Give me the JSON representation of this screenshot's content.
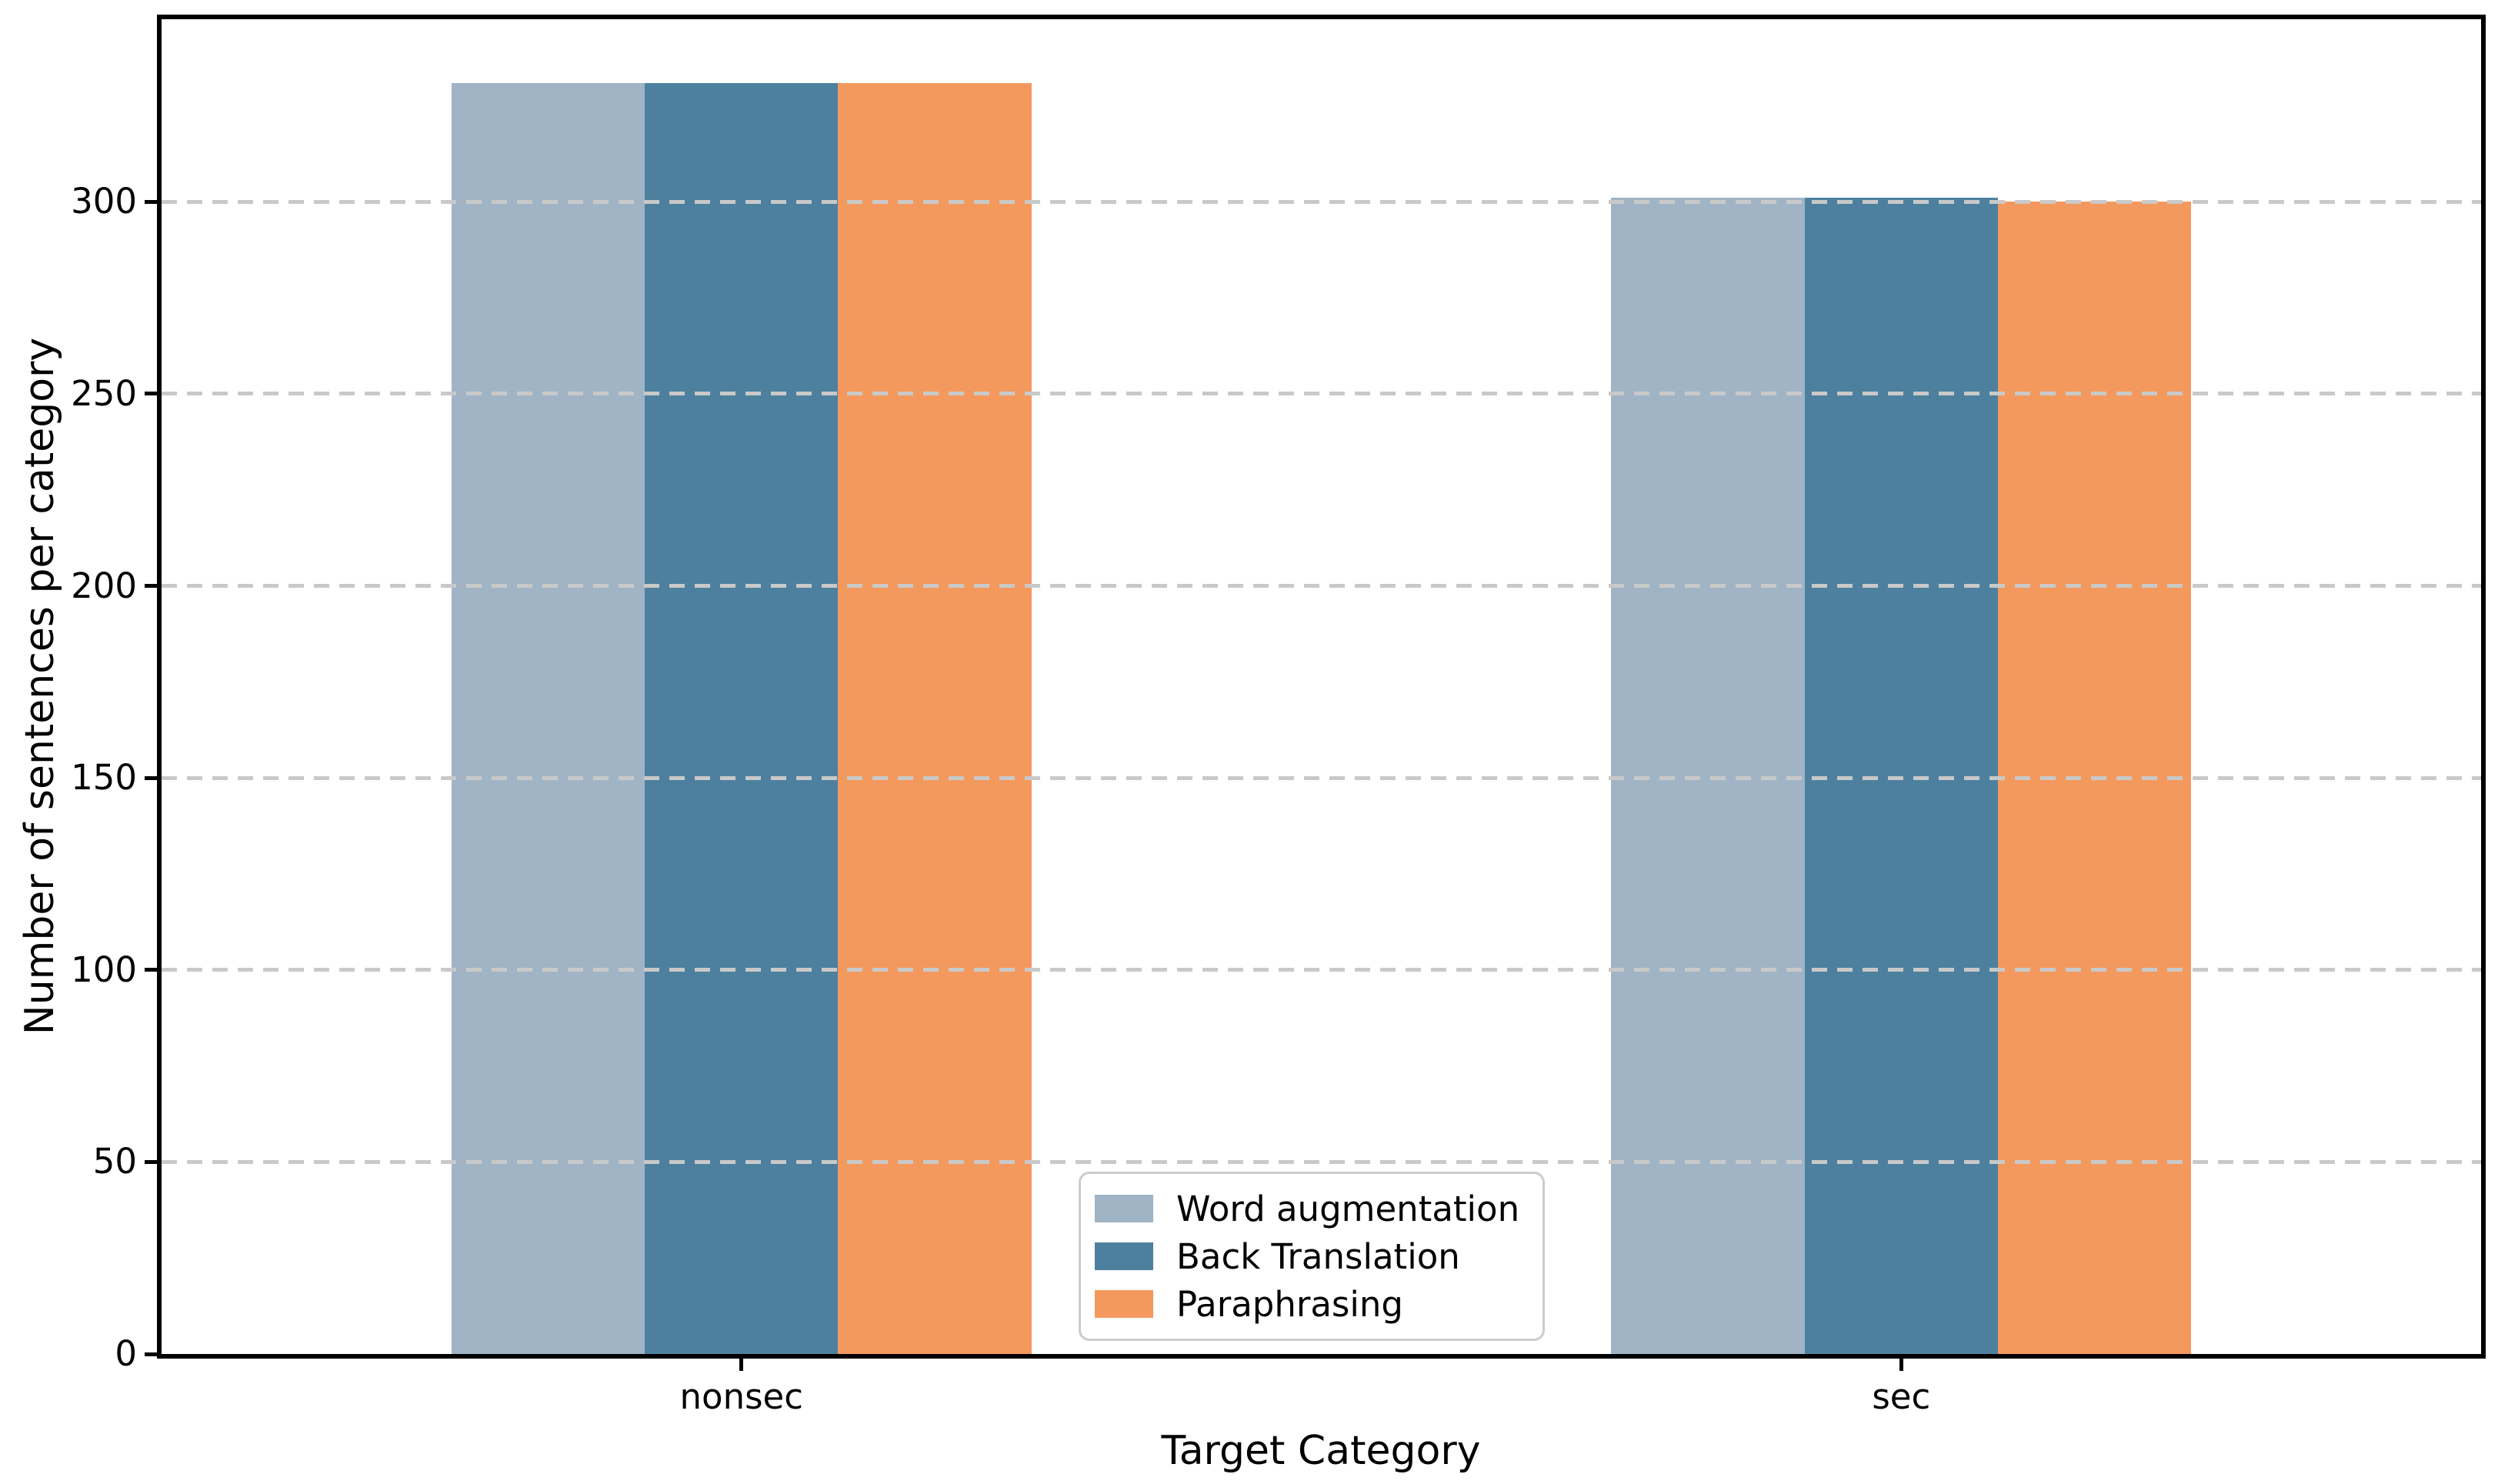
{
  "figure": {
    "background": "#ffffff"
  },
  "chart_data": {
    "type": "bar",
    "title": "",
    "xlabel": "Target Category",
    "ylabel": "Number of sentences per category",
    "categories": [
      "nonsec",
      "sec"
    ],
    "series": [
      {
        "name": "Word augmentation",
        "color": "#a0b4c5",
        "values": [
          331,
          301
        ]
      },
      {
        "name": "Back Translation",
        "color": "#4d809e",
        "values": [
          331,
          301
        ]
      },
      {
        "name": "Paraphrasing",
        "color": "#f4995e",
        "values": [
          331,
          300
        ]
      }
    ],
    "yticks": [
      0,
      50,
      100,
      150,
      200,
      250,
      300
    ],
    "ylim": [
      0,
      347.55
    ],
    "xlim": [
      -0.5,
      1.5
    ],
    "bar_width_units": 0.1667,
    "grid": {
      "axis": "y",
      "style": "dashed",
      "color": "#c9c9c9",
      "drawn_above_bars": true
    },
    "legend": {
      "position": "lower-center-left",
      "border_color": "#cccccc",
      "background": "#ffffff",
      "entries": [
        "Word augmentation",
        "Back Translation",
        "Paraphrasing"
      ]
    }
  }
}
